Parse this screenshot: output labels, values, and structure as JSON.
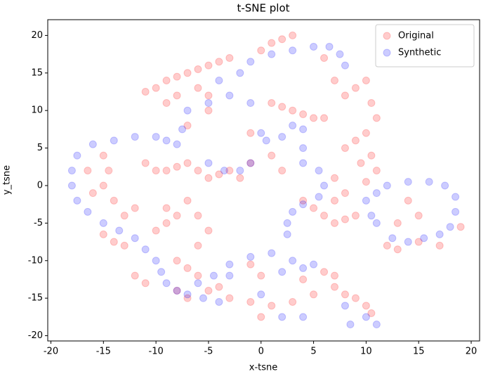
{
  "chart_data": {
    "type": "scatter",
    "title": "t-SNE plot",
    "x_label": "x-tsne",
    "y_label": "y_tsne",
    "xlim": [
      -20.3,
      20.8
    ],
    "ylim": [
      -20.7,
      22.1
    ],
    "xticks": [
      -20,
      -15,
      -10,
      -5,
      0,
      5,
      10,
      15,
      20
    ],
    "yticks": [
      -20,
      -15,
      -10,
      -5,
      0,
      5,
      10,
      15,
      20
    ],
    "grid": false,
    "legend": "upper right",
    "alpha": 0.2,
    "series": [
      {
        "name": "Original",
        "color": "#ff0000",
        "x": [
          -11,
          -10,
          -9,
          -8,
          -7,
          -6,
          -5,
          -4,
          -3,
          -6,
          -5,
          -8,
          -9,
          -7,
          -5,
          0,
          1,
          2,
          3,
          6,
          7,
          8,
          9,
          10,
          10.5,
          11,
          10,
          9,
          8,
          9.5,
          10,
          11,
          10.5,
          1,
          2,
          3,
          4,
          5,
          6,
          -1,
          1,
          2,
          -1,
          -2,
          -15,
          -14.5,
          -15,
          -14,
          -16,
          -16.5,
          -13,
          -12,
          -13,
          -14,
          -15,
          -12,
          -11,
          -9,
          -10,
          -11,
          -10,
          -9,
          -8,
          -7,
          -6,
          -5,
          -4,
          -3,
          -9,
          -8,
          -7,
          -6,
          -5,
          -6,
          -8,
          -7,
          -6,
          -5,
          -4,
          -7,
          -8,
          -3,
          -1,
          0,
          1,
          3,
          5,
          7,
          8,
          9,
          10,
          10.5,
          6,
          7,
          4,
          -1,
          0,
          4,
          5,
          6,
          7,
          8,
          9,
          7,
          12,
          13,
          15,
          17,
          19,
          15,
          13,
          14,
          7,
          8
        ],
        "values": [
          12.5,
          13,
          14,
          14.5,
          15,
          15.5,
          16,
          16.5,
          17,
          13,
          12,
          12,
          11,
          8,
          10,
          18,
          19,
          19.5,
          20,
          17,
          14,
          12,
          13,
          14,
          11,
          9,
          7,
          6,
          5,
          3,
          0.5,
          2,
          4,
          11,
          10.5,
          10,
          9.5,
          9,
          9,
          7,
          4,
          2,
          3,
          1,
          4,
          2,
          0,
          -2,
          -1,
          2,
          -4,
          -3,
          -8,
          -7.5,
          -6.5,
          -12,
          -13,
          -5,
          -6,
          3,
          2,
          2,
          2.5,
          3,
          2,
          1,
          1.5,
          2,
          -3,
          -4,
          -2,
          -4,
          -6,
          -8,
          -10,
          -11,
          -12,
          -14,
          -13.5,
          -15,
          -14,
          -15,
          -15.5,
          -17.5,
          -16,
          -15.5,
          -14.5,
          -13.5,
          -14.5,
          -15,
          -16,
          -17,
          -11.5,
          -12,
          -12.5,
          -10.5,
          -12,
          -2,
          -3,
          -4,
          -5,
          -4.5,
          -4,
          -2,
          -8,
          -8.5,
          -7.5,
          -8,
          -5.5,
          -4,
          -5,
          -2,
          1,
          -1
        ]
      },
      {
        "name": "Synthetic",
        "color": "#0000ff",
        "x": [
          -12,
          -14,
          -16,
          -17.5,
          -18,
          -18,
          -17.5,
          -16.5,
          -15,
          -13.5,
          -12,
          -11,
          -10,
          -9.5,
          -9,
          -8,
          -7,
          -5.5,
          -4,
          -10,
          -9,
          -8,
          -2,
          -1,
          1,
          3,
          5,
          6.5,
          7.5,
          8,
          0,
          0.5,
          -1,
          2,
          3,
          4,
          4,
          4,
          5.5,
          6,
          5.5,
          4,
          3,
          2.5,
          2.5,
          10,
          11,
          12,
          14,
          16,
          17.5,
          18.5,
          18.5,
          18,
          17,
          15.5,
          14,
          12.5,
          11,
          10.5,
          -3,
          -1,
          1,
          3,
          5,
          -3,
          2,
          4,
          0,
          2,
          4,
          8,
          10,
          11,
          8.5,
          -6,
          -4.5,
          -7.5,
          -5,
          -3.5,
          -2,
          -4,
          -3,
          -1,
          -5,
          -7
        ],
        "values": [
          6.5,
          6,
          5.5,
          4,
          2,
          0,
          -2,
          -3.5,
          -5,
          -6,
          -7,
          -8.5,
          -10,
          -11.5,
          -13,
          -14,
          -14.5,
          -15,
          -15.5,
          6.5,
          6,
          5.5,
          15,
          16.5,
          17.5,
          18,
          18.5,
          18.5,
          17.5,
          16,
          7,
          6,
          3,
          6.5,
          8,
          7.5,
          5,
          3,
          2,
          0,
          -1.5,
          -2.5,
          -3.5,
          -5,
          -6.5,
          -2,
          -1,
          0,
          0.5,
          0.5,
          0,
          -1.5,
          -3.5,
          -5.5,
          -6.5,
          -7,
          -7.5,
          -7,
          -5,
          -4,
          -10.5,
          -9.5,
          -9,
          -10,
          -10.5,
          -12,
          -11.5,
          -11,
          -14.5,
          -17.5,
          -17.5,
          -16,
          -17.5,
          -18.5,
          -18.5,
          -13,
          -12,
          7.5,
          3,
          2,
          2,
          14,
          12,
          11,
          11,
          10
        ]
      }
    ]
  }
}
